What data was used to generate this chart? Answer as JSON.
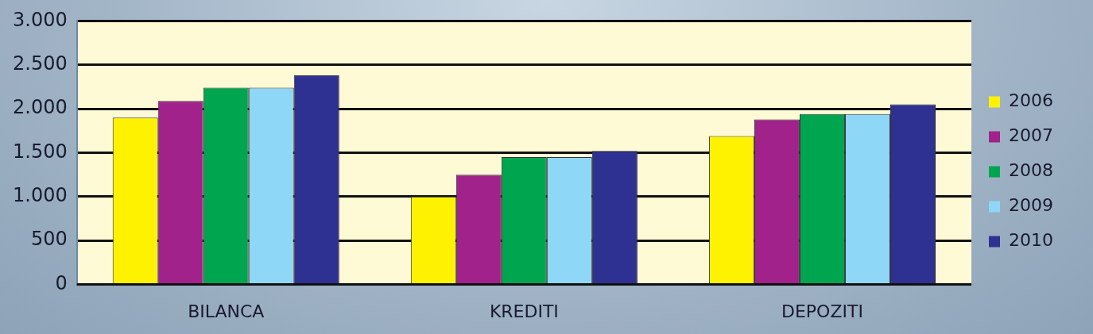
{
  "chart_data": {
    "type": "bar",
    "categories": [
      "BILANCA",
      "KREDITI",
      "DEPOZITI"
    ],
    "series": [
      {
        "name": "2006",
        "color": "#fff200",
        "values": [
          1900,
          1000,
          1690
        ]
      },
      {
        "name": "2007",
        "color": "#a0228a",
        "values": [
          2090,
          1250,
          1880
        ]
      },
      {
        "name": "2008",
        "color": "#00a550",
        "values": [
          2240,
          1450,
          1940
        ]
      },
      {
        "name": "2009",
        "color": "#8fd7f7",
        "values": [
          2240,
          1450,
          1940
        ]
      },
      {
        "name": "2010",
        "color": "#2e3192",
        "values": [
          2380,
          1520,
          2050
        ]
      }
    ],
    "ylim": [
      0,
      3000
    ],
    "yticks": [
      {
        "value": 0,
        "label": "0"
      },
      {
        "value": 500,
        "label": "500"
      },
      {
        "value": 1000,
        "label": "1.000"
      },
      {
        "value": 1500,
        "label": "1.500"
      },
      {
        "value": 2000,
        "label": "2.000"
      },
      {
        "value": 2500,
        "label": "2.500"
      },
      {
        "value": 3000,
        "label": "3.000"
      }
    ],
    "grid": "y",
    "legend": "right"
  }
}
